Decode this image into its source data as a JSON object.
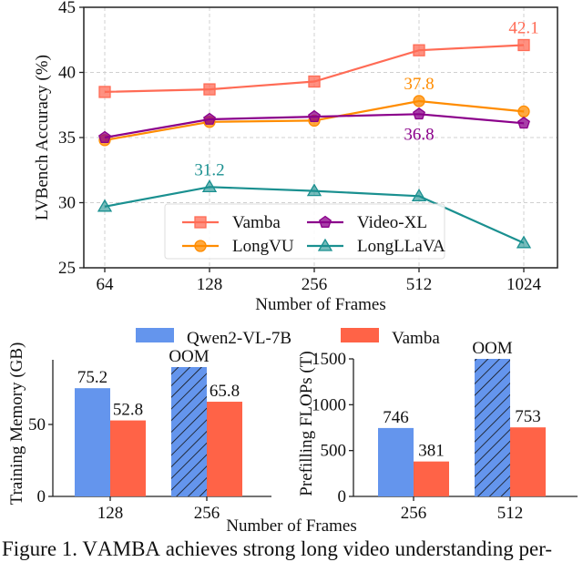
{
  "chart_data": [
    {
      "type": "line",
      "title": "",
      "xlabel": "Number of Frames",
      "ylabel": "LVBench Accuracy (%)",
      "categories": [
        "64",
        "128",
        "256",
        "512",
        "1024"
      ],
      "ylim": [
        25,
        45
      ],
      "yticks": [
        25,
        30,
        35,
        40,
        45
      ],
      "grid": true,
      "legend_position": "lower-center",
      "series": [
        {
          "name": "Vamba",
          "color": "#ff6b55",
          "marker": "square",
          "values": [
            38.5,
            38.7,
            39.3,
            41.7,
            42.1
          ]
        },
        {
          "name": "LongVU",
          "color": "#ff8c00",
          "marker": "circle",
          "values": [
            34.8,
            36.2,
            36.3,
            37.8,
            37.0
          ]
        },
        {
          "name": "Video-XL",
          "color": "#8b008b",
          "marker": "pentagon",
          "values": [
            35.0,
            36.4,
            36.6,
            36.8,
            36.1
          ]
        },
        {
          "name": "LongLLaVA",
          "color": "#1a9090",
          "marker": "triangle",
          "values": [
            29.7,
            31.2,
            30.9,
            30.5,
            26.9
          ]
        }
      ],
      "annotations": [
        {
          "text": "42.1",
          "series": "Vamba",
          "index": 4,
          "position": "above"
        },
        {
          "text": "37.8",
          "series": "LongVU",
          "index": 3,
          "position": "above"
        },
        {
          "text": "36.8",
          "series": "Video-XL",
          "index": 3,
          "position": "below"
        },
        {
          "text": "31.2",
          "series": "LongLLaVA",
          "index": 1,
          "position": "above"
        }
      ]
    },
    {
      "type": "bar",
      "title": "",
      "xlabel": "Number of Frames",
      "ylabel": "Training Memory (GB)",
      "categories": [
        "128",
        "256"
      ],
      "ylim": [
        0,
        95
      ],
      "yticks": [
        0,
        50
      ],
      "series": [
        {
          "name": "Qwen2-VL-7B",
          "color": "#6495ed",
          "values": [
            75.2,
            null
          ],
          "labels": [
            "75.2",
            "OOM"
          ],
          "oom": [
            false,
            true
          ]
        },
        {
          "name": "Vamba",
          "color": "#ff6347",
          "values": [
            52.8,
            65.8
          ],
          "labels": [
            "52.8",
            "65.8"
          ],
          "oom": [
            false,
            false
          ]
        }
      ]
    },
    {
      "type": "bar",
      "title": "",
      "xlabel": "",
      "ylabel": "Prefilling FLOPs (T)",
      "categories": [
        "256",
        "512"
      ],
      "ylim": [
        0,
        1500
      ],
      "yticks": [
        0,
        500,
        1000,
        1500
      ],
      "series": [
        {
          "name": "Qwen2-VL-7B",
          "color": "#6495ed",
          "values": [
            746,
            null
          ],
          "labels": [
            "746",
            "OOM"
          ],
          "oom": [
            false,
            true
          ]
        },
        {
          "name": "Vamba",
          "color": "#ff6347",
          "values": [
            381,
            753
          ],
          "labels": [
            "381",
            "753"
          ],
          "oom": [
            false,
            false
          ]
        }
      ]
    }
  ],
  "shared_legend": [
    {
      "name": "Qwen2-VL-7B",
      "color": "#6495ed"
    },
    {
      "name": "Vamba",
      "color": "#ff6347"
    }
  ],
  "shared_xlabel": "Number of Frames",
  "caption": {
    "prefix": "Figure 1.  ",
    "name_first": "V",
    "name_rest": "AMBA",
    "suffix": " achieves strong long video understanding per-"
  }
}
